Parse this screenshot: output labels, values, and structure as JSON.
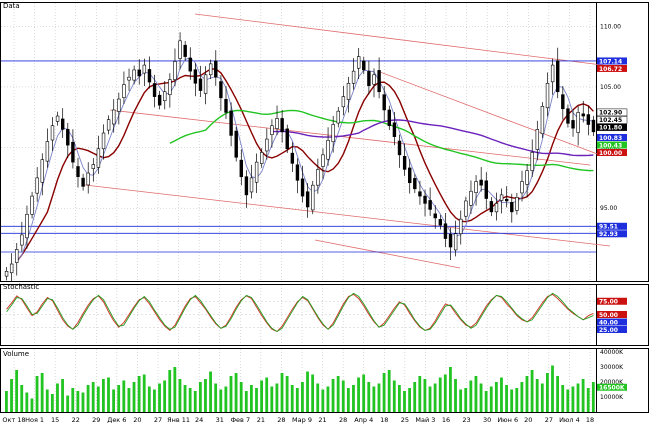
{
  "panels": {
    "price": {
      "label": "Data"
    },
    "stoch": {
      "label": "Stochastic"
    },
    "volume": {
      "label": "Volume"
    }
  },
  "chart_data": [
    {
      "type": "candlestick",
      "panel": "price",
      "ylim": [
        89,
        112
      ],
      "yticks": [
        {
          "value": 110,
          "label": "110.00"
        },
        {
          "value": 105,
          "label": "105.00"
        },
        {
          "value": 100,
          "label": "100.00"
        },
        {
          "value": 95,
          "label": "95.00"
        }
      ],
      "x_labels": [
        "Окт 18",
        "Ноя 1",
        "15",
        "22",
        "29",
        "Дек 6",
        "20",
        "27",
        "Янв 11",
        "24",
        "31",
        "Фев 7",
        "21",
        "28",
        "Мар 9",
        "21",
        "28",
        "Апр 4",
        "18",
        "25",
        "Май 3",
        "16",
        "23",
        "30",
        "Июн 6",
        "20",
        "27",
        "Июл 4",
        "18"
      ],
      "close": [
        89.8,
        90.4,
        91.6,
        92.8,
        94.5,
        96.0,
        97.5,
        99.0,
        100.5,
        101.8,
        102.6,
        101.5,
        100.2,
        98.8,
        97.6,
        96.8,
        97.9,
        98.6,
        99.9,
        101.2,
        102.3,
        103.1,
        104.0,
        105.2,
        105.8,
        106.4,
        105.9,
        106.8,
        105.4,
        104.2,
        103.5,
        104.6,
        105.6,
        107.1,
        108.8,
        107.5,
        106.3,
        105.3,
        104.7,
        106.0,
        106.9,
        105.8,
        104.1,
        102.9,
        101.0,
        99.2,
        97.6,
        96.1,
        97.5,
        98.8,
        99.6,
        100.7,
        101.8,
        102.4,
        101.3,
        99.9,
        98.7,
        97.3,
        96.0,
        95.1,
        96.9,
        98.2,
        99.4,
        100.6,
        101.9,
        103.0,
        104.2,
        105.3,
        106.3,
        107.5,
        106.4,
        105.1,
        106.0,
        104.6,
        103.1,
        101.8,
        100.9,
        99.4,
        98.2,
        97.1,
        96.6,
        96.0,
        95.4,
        94.9,
        94.2,
        93.6,
        92.5,
        91.8,
        92.9,
        94.1,
        95.6,
        96.4,
        97.2,
        96.9,
        95.8,
        94.7,
        95.4,
        96.1,
        95.6,
        94.7,
        95.9,
        97.2,
        98.1,
        99.6,
        101.5,
        103.4,
        105.3,
        106.8,
        104.6,
        103.2,
        102.0,
        101.6,
        102.9,
        102.6,
        101.9,
        101.3
      ],
      "series": [
        {
          "name": "",
          "color": "#8a0000"
        },
        {
          "name": "",
          "color": "#7a82c8"
        },
        {
          "name": "",
          "color": "#22c422"
        },
        {
          "name": "",
          "color": "#6a22bb"
        }
      ],
      "right_tags": [
        {
          "value": 107.14,
          "label": "107.14",
          "bg": "#1e2edc",
          "fg": "#ffffff"
        },
        {
          "value": 106.72,
          "label": "106.72",
          "bg": "#cc1111",
          "fg": "#ffffff"
        },
        {
          "value": 102.9,
          "label": "102.90",
          "bg": "#ffffff",
          "fg": "#000000"
        },
        {
          "value": 102.45,
          "label": "102.45",
          "bg": "#ffffff",
          "fg": "#000000"
        },
        {
          "value": 101.8,
          "label": "101.80",
          "bg": "#000000",
          "fg": "#ffffff"
        },
        {
          "value": 100.83,
          "label": "100.83",
          "bg": "#1e2edc",
          "fg": "#ffffff"
        },
        {
          "value": 100.43,
          "label": "100.43",
          "bg": "#22c422",
          "fg": "#ffffff"
        },
        {
          "value": 100.0,
          "label": "100.00",
          "bg": "#cc1111",
          "fg": "#ffffff"
        },
        {
          "value": 93.51,
          "label": "93.51",
          "bg": "#1e2edc",
          "fg": "#ffffff"
        },
        {
          "value": 92.93,
          "label": "92.93",
          "bg": "#1e2edc",
          "fg": "#ffffff"
        }
      ],
      "horizontal_lines": [
        {
          "value": 107.14,
          "color": "#1e2edc"
        },
        {
          "value": 93.51,
          "color": "#1e2edc"
        },
        {
          "value": 92.93,
          "color": "#1e2edc"
        }
      ],
      "grid": true
    },
    {
      "type": "line",
      "panel": "stoch",
      "ylim": [
        0,
        100
      ],
      "right_tags": [
        {
          "value": 75,
          "label": "75.00",
          "bg": "#cc1111",
          "fg": "#ffffff"
        },
        {
          "value": 50,
          "label": "50.00",
          "bg": "#cc1111",
          "fg": "#ffffff"
        },
        {
          "value": 40,
          "label": "40.00",
          "bg": "#1e2edc",
          "fg": "#ffffff"
        },
        {
          "value": 25,
          "label": "25.00",
          "bg": "#1e2edc",
          "fg": "#ffffff"
        }
      ],
      "series": [
        {
          "name": "",
          "color": "#d03020",
          "values": [
            60,
            72,
            85,
            78,
            62,
            48,
            55,
            70,
            82,
            76,
            58,
            40,
            28,
            22,
            35,
            52,
            68,
            80,
            85,
            74,
            55,
            38,
            26,
            35,
            50,
            65,
            78,
            82,
            70,
            55,
            40,
            28,
            20,
            30,
            48,
            66,
            80,
            84,
            72,
            60,
            45,
            32,
            24,
            30,
            46,
            64,
            78,
            85,
            80,
            64,
            48,
            34,
            22,
            18,
            28,
            44,
            60,
            74,
            82,
            76,
            60,
            44,
            30,
            22,
            34,
            52,
            70,
            84,
            88,
            80,
            66,
            50,
            36,
            26,
            34,
            48,
            62,
            74,
            68,
            52,
            38,
            26,
            20,
            24,
            38,
            55,
            70,
            66,
            52,
            40,
            30,
            26,
            34,
            50,
            66,
            78,
            86,
            82,
            70,
            60,
            48,
            40,
            36,
            44,
            58,
            72,
            84,
            88,
            80,
            70,
            60,
            52,
            46,
            40,
            48,
            52
          ]
        },
        {
          "name": "",
          "color": "#22a022",
          "values": [
            55,
            68,
            82,
            80,
            66,
            50,
            52,
            66,
            80,
            78,
            62,
            44,
            30,
            22,
            30,
            48,
            64,
            78,
            86,
            78,
            60,
            42,
            28,
            30,
            46,
            62,
            76,
            84,
            74,
            58,
            44,
            30,
            22,
            26,
            44,
            62,
            78,
            86,
            76,
            62,
            48,
            34,
            24,
            28,
            42,
            60,
            76,
            86,
            82,
            68,
            52,
            36,
            24,
            18,
            24,
            40,
            56,
            72,
            84,
            78,
            62,
            46,
            32,
            22,
            30,
            48,
            66,
            82,
            90,
            84,
            70,
            54,
            38,
            26,
            30,
            44,
            58,
            72,
            70,
            56,
            40,
            28,
            20,
            22,
            34,
            50,
            66,
            68,
            56,
            42,
            32,
            24,
            30,
            46,
            62,
            76,
            86,
            84,
            74,
            62,
            50,
            42,
            36,
            40,
            54,
            68,
            82,
            90,
            84,
            74,
            62,
            54,
            46,
            40,
            44,
            48
          ]
        }
      ]
    },
    {
      "type": "bar",
      "panel": "volume",
      "ylim": [
        0,
        40000
      ],
      "yticks": [
        {
          "value": 40000,
          "label": "40000K"
        },
        {
          "value": 30000,
          "label": "30000K"
        },
        {
          "value": 20000,
          "label": "20000K"
        },
        {
          "value": 10000,
          "label": "10000K"
        }
      ],
      "right_tags": [
        {
          "value": 16500,
          "label": "16500K",
          "bg": "#22c422",
          "fg": "#ffffff"
        }
      ],
      "values": [
        14000,
        22000,
        28000,
        18000,
        13000,
        9000,
        24000,
        26000,
        15000,
        12000,
        19000,
        22000,
        11000,
        16000,
        14000,
        13000,
        18000,
        20000,
        17000,
        22000,
        23000,
        15000,
        18000,
        21000,
        16000,
        20000,
        24000,
        25000,
        17000,
        15000,
        19000,
        21000,
        28000,
        30000,
        22000,
        18000,
        16000,
        14000,
        20000,
        22000,
        27000,
        19000,
        15000,
        17000,
        24000,
        26000,
        20000,
        14000,
        18000,
        16000,
        21000,
        23000,
        17000,
        19000,
        26000,
        24000,
        18000,
        16000,
        20000,
        27000,
        25000,
        19000,
        15000,
        17000,
        22000,
        24000,
        21000,
        16000,
        18000,
        23000,
        25000,
        20000,
        17000,
        19000,
        26000,
        28000,
        21000,
        18000,
        14000,
        16000,
        20000,
        24000,
        22000,
        17000,
        19000,
        23000,
        25000,
        30000,
        22000,
        15000,
        16000,
        21000,
        24000,
        19000,
        14000,
        17000,
        20000,
        23000,
        18000,
        15000,
        16000,
        20000,
        24000,
        28000,
        22000,
        19000,
        26000,
        31000,
        24000,
        18000,
        15000,
        17000,
        19000,
        22000,
        16000,
        20000
      ]
    }
  ]
}
